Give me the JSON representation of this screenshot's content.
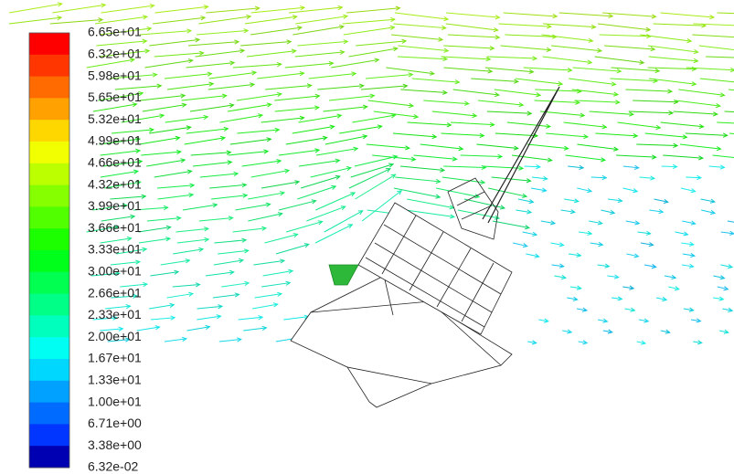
{
  "colorbar": {
    "labels": [
      "6.65e+01",
      "6.32e+01",
      "5.98e+01",
      "5.65e+01",
      "5.32e+01",
      "4.99e+01",
      "4.66e+01",
      "4.32e+01",
      "3.99e+01",
      "3.66e+01",
      "3.33e+01",
      "3.00e+01",
      "2.66e+01",
      "2.33e+01",
      "2.00e+01",
      "1.67e+01",
      "1.33e+01",
      "1.00e+01",
      "6.71e+00",
      "3.38e+00",
      "6.32e-02"
    ]
  }
}
